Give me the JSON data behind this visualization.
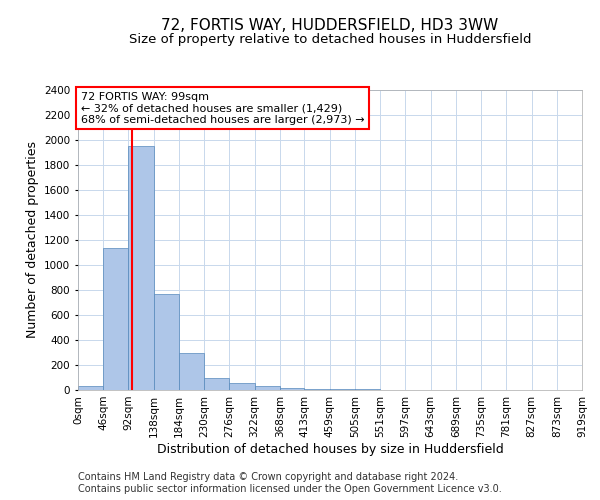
{
  "title": "72, FORTIS WAY, HUDDERSFIELD, HD3 3WW",
  "subtitle": "Size of property relative to detached houses in Huddersfield",
  "xlabel": "Distribution of detached houses by size in Huddersfield",
  "ylabel": "Number of detached properties",
  "bin_edges": [
    0,
    46,
    92,
    138,
    184,
    230,
    276,
    322,
    368,
    413,
    459,
    505,
    551,
    597,
    643,
    689,
    735,
    781,
    827,
    873,
    919
  ],
  "bar_heights": [
    30,
    1140,
    1950,
    770,
    300,
    100,
    55,
    35,
    20,
    10,
    5,
    5,
    3,
    2,
    2,
    1,
    1,
    1,
    1,
    0
  ],
  "bar_color": "#aec6e8",
  "bar_edge_color": "#5588bb",
  "property_size": 99,
  "vline_color": "red",
  "annotation_line1": "72 FORTIS WAY: 99sqm",
  "annotation_line2": "← 32% of detached houses are smaller (1,429)",
  "annotation_line3": "68% of semi-detached houses are larger (2,973) →",
  "ylim": [
    0,
    2400
  ],
  "yticks": [
    0,
    200,
    400,
    600,
    800,
    1000,
    1200,
    1400,
    1600,
    1800,
    2000,
    2200,
    2400
  ],
  "xtick_labels": [
    "0sqm",
    "46sqm",
    "92sqm",
    "138sqm",
    "184sqm",
    "230sqm",
    "276sqm",
    "322sqm",
    "368sqm",
    "413sqm",
    "459sqm",
    "505sqm",
    "551sqm",
    "597sqm",
    "643sqm",
    "689sqm",
    "735sqm",
    "781sqm",
    "827sqm",
    "873sqm",
    "919sqm"
  ],
  "footer_line1": "Contains HM Land Registry data © Crown copyright and database right 2024.",
  "footer_line2": "Contains public sector information licensed under the Open Government Licence v3.0.",
  "background_color": "#ffffff",
  "grid_color": "#c8d8ec",
  "title_fontsize": 11,
  "subtitle_fontsize": 9.5,
  "axis_label_fontsize": 9,
  "tick_fontsize": 7.5,
  "annotation_fontsize": 8,
  "footer_fontsize": 7
}
